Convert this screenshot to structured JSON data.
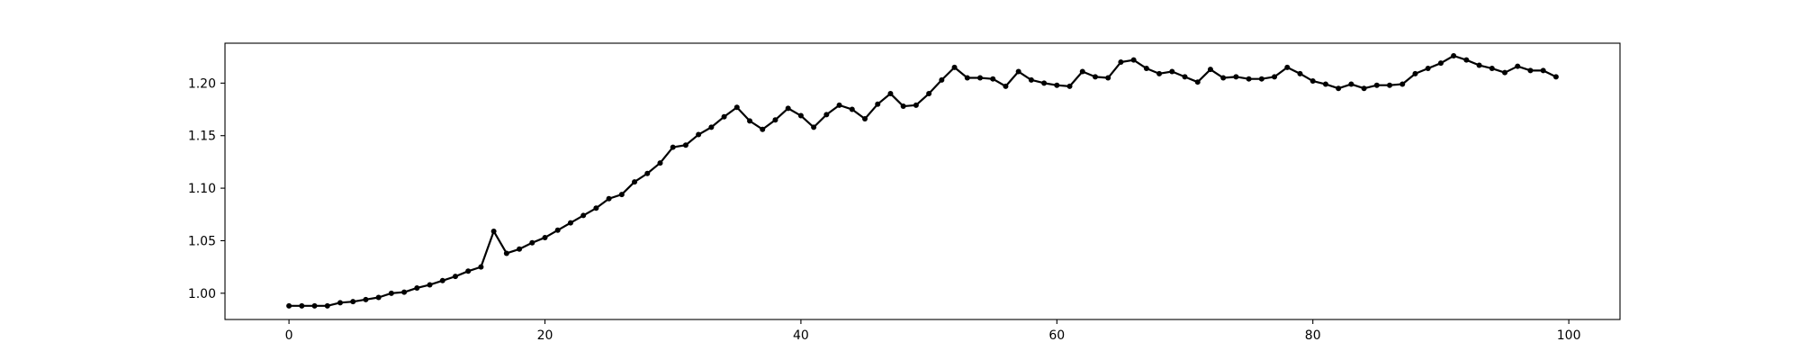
{
  "chart_data": {
    "type": "line",
    "title": "",
    "xlabel": "",
    "ylabel": "",
    "xlim": [
      -5,
      104
    ],
    "ylim": [
      0.975,
      1.238
    ],
    "x_ticks": [
      0,
      20,
      40,
      60,
      80,
      100
    ],
    "y_ticks": [
      1.0,
      1.05,
      1.1,
      1.15,
      1.2
    ],
    "x_tick_labels": [
      "0",
      "20",
      "40",
      "60",
      "80",
      "100"
    ],
    "y_tick_labels": [
      "1.00",
      "1.05",
      "1.10",
      "1.15",
      "1.20"
    ],
    "grid": false,
    "series": [
      {
        "color": "#000000",
        "marker": "circle",
        "x": [
          0,
          1,
          2,
          3,
          4,
          5,
          6,
          7,
          8,
          9,
          10,
          11,
          12,
          13,
          14,
          15,
          16,
          17,
          18,
          19,
          20,
          21,
          22,
          23,
          24,
          25,
          26,
          27,
          28,
          29,
          30,
          31,
          32,
          33,
          34,
          35,
          36,
          37,
          38,
          39,
          40,
          41,
          42,
          43,
          44,
          45,
          46,
          47,
          48,
          49,
          50,
          51,
          52,
          53,
          54,
          55,
          56,
          57,
          58,
          59,
          60,
          61,
          62,
          63,
          64,
          65,
          66,
          67,
          68,
          69,
          70,
          71,
          72,
          73,
          74,
          75,
          76,
          77,
          78,
          79,
          80,
          81,
          82,
          83,
          84,
          85,
          86,
          87,
          88,
          89,
          90,
          91,
          92,
          93,
          94,
          95,
          96,
          97,
          98,
          99
        ],
        "values": [
          0.988,
          0.988,
          0.988,
          0.988,
          0.991,
          0.992,
          0.994,
          0.996,
          1.0,
          1.001,
          1.005,
          1.008,
          1.012,
          1.016,
          1.021,
          1.025,
          1.059,
          1.038,
          1.042,
          1.048,
          1.053,
          1.06,
          1.067,
          1.074,
          1.081,
          1.09,
          1.094,
          1.106,
          1.114,
          1.124,
          1.139,
          1.141,
          1.151,
          1.158,
          1.168,
          1.177,
          1.164,
          1.156,
          1.165,
          1.176,
          1.169,
          1.158,
          1.17,
          1.179,
          1.175,
          1.166,
          1.18,
          1.19,
          1.178,
          1.179,
          1.19,
          1.203,
          1.215,
          1.205,
          1.205,
          1.204,
          1.197,
          1.211,
          1.203,
          1.2,
          1.198,
          1.197,
          1.211,
          1.206,
          1.205,
          1.22,
          1.222,
          1.214,
          1.209,
          1.211,
          1.206,
          1.201,
          1.213,
          1.205,
          1.206,
          1.204,
          1.204,
          1.206,
          1.215,
          1.209,
          1.202,
          1.199,
          1.195,
          1.199,
          1.195,
          1.198,
          1.198,
          1.199,
          1.209,
          1.214,
          1.219,
          1.226,
          1.222,
          1.217,
          1.214,
          1.21,
          1.216,
          1.212,
          1.212,
          1.206
        ]
      }
    ]
  }
}
